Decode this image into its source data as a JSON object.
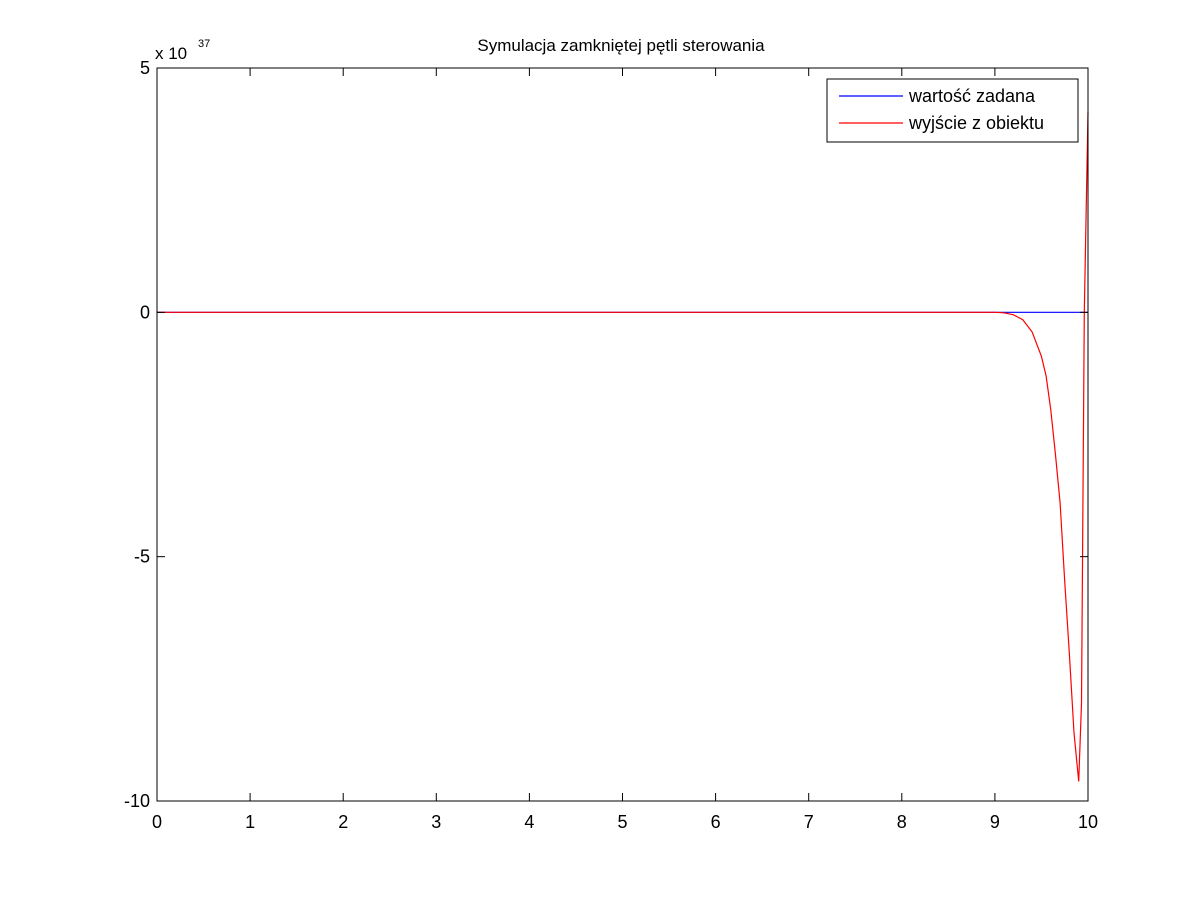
{
  "figure": {
    "background": "#ffffff"
  },
  "chart_data": {
    "type": "line",
    "title": "Symulacja zamkniętej pętli sterowania",
    "xlabel": "",
    "ylabel": "",
    "xlim": [
      0,
      10
    ],
    "ylim": [
      -10,
      5
    ],
    "y_exponent_label": "x 10",
    "y_exponent_power": "37",
    "x_ticks": [
      0,
      1,
      2,
      3,
      4,
      5,
      6,
      7,
      8,
      9,
      10
    ],
    "x_tick_labels": [
      "0",
      "1",
      "2",
      "3",
      "4",
      "5",
      "6",
      "7",
      "8",
      "9",
      "10"
    ],
    "y_ticks": [
      -10,
      -5,
      0,
      5
    ],
    "y_tick_labels": [
      "-10",
      "-5",
      "0",
      "5"
    ],
    "grid": false,
    "legend_position": "top-right",
    "series": [
      {
        "name": "wartość zadana",
        "color": "#0000ff",
        "x": [
          0,
          10
        ],
        "y": [
          0,
          0
        ]
      },
      {
        "name": "wyjście z obiektu",
        "color": "#ff0000",
        "x": [
          0,
          9.0,
          9.1,
          9.2,
          9.3,
          9.4,
          9.5,
          9.55,
          9.6,
          9.65,
          9.7,
          9.75,
          9.8,
          9.85,
          9.9,
          9.93,
          9.96,
          10.0
        ],
        "y": [
          0,
          0,
          -0.01,
          -0.05,
          -0.15,
          -0.4,
          -0.9,
          -1.3,
          -2.0,
          -2.9,
          -3.9,
          -5.5,
          -7.0,
          -8.6,
          -9.6,
          -8.0,
          0.0,
          4.1
        ]
      }
    ]
  }
}
